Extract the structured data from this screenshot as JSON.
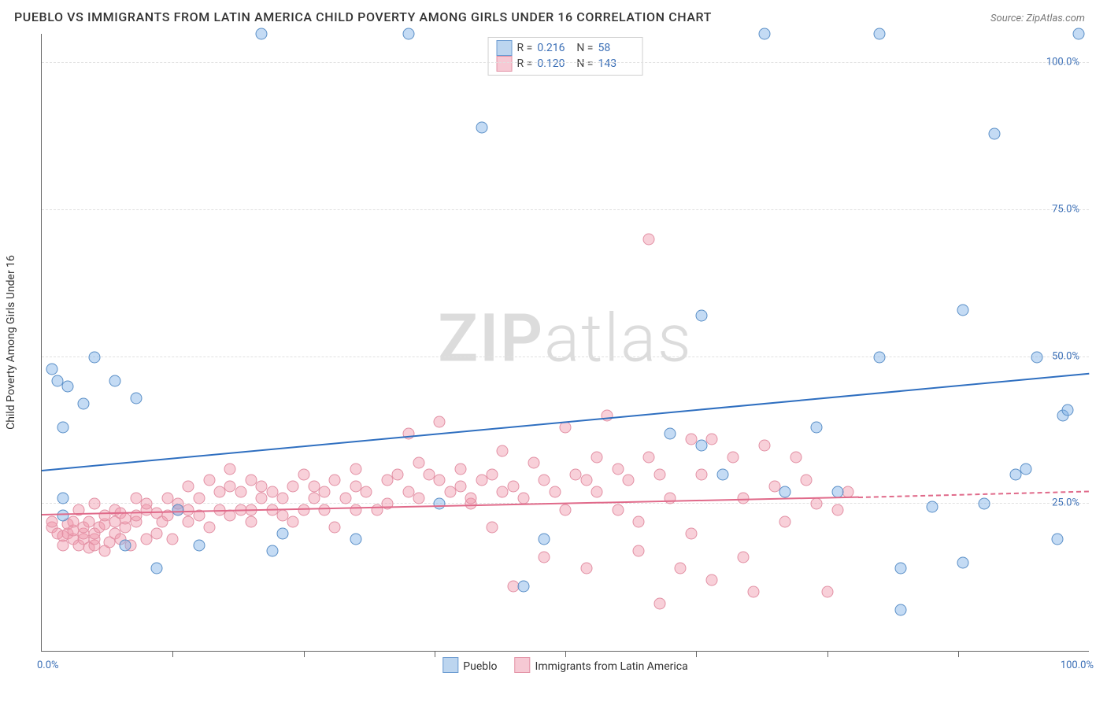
{
  "title": "PUEBLO VS IMMIGRANTS FROM LATIN AMERICA CHILD POVERTY AMONG GIRLS UNDER 16 CORRELATION CHART",
  "source_label": "Source: ZipAtlas.com",
  "ylabel": "Child Poverty Among Girls Under 16",
  "watermark_a": "ZIP",
  "watermark_b": "atlas",
  "xlim": [
    0,
    100
  ],
  "ylim": [
    0,
    105
  ],
  "yticks": [
    {
      "v": 25,
      "label": "25.0%"
    },
    {
      "v": 50,
      "label": "50.0%"
    },
    {
      "v": 75,
      "label": "75.0%"
    },
    {
      "v": 100,
      "label": "100.0%"
    }
  ],
  "xticks_minor": [
    12.5,
    25,
    37.5,
    50,
    62.5,
    75,
    87.5
  ],
  "x_axis_labels": {
    "min": "0.0%",
    "max": "100.0%"
  },
  "series": {
    "pueblo": {
      "label": "Pueblo",
      "R": "0.216",
      "N": "58",
      "marker_fill": "rgba(125,175,230,0.45)",
      "marker_stroke": "#5a8fc7",
      "swatch_fill": "#bcd5ef",
      "swatch_stroke": "#6b9bd1",
      "trend_color": "#2f6fc0",
      "trend": {
        "x1": 0,
        "y1": 30.5,
        "x2": 100,
        "y2": 47
      },
      "points": [
        [
          1,
          48
        ],
        [
          1.5,
          46
        ],
        [
          2,
          23
        ],
        [
          2,
          26
        ],
        [
          2,
          38
        ],
        [
          2.5,
          45
        ],
        [
          4,
          42
        ],
        [
          5,
          50
        ],
        [
          7,
          46
        ],
        [
          8,
          18
        ],
        [
          9,
          43
        ],
        [
          11,
          14
        ],
        [
          13,
          24
        ],
        [
          15,
          18
        ],
        [
          21,
          105
        ],
        [
          22,
          17
        ],
        [
          23,
          20
        ],
        [
          30,
          19
        ],
        [
          35,
          105
        ],
        [
          38,
          25
        ],
        [
          42,
          89
        ],
        [
          46,
          11
        ],
        [
          48,
          19
        ],
        [
          60,
          37
        ],
        [
          63,
          35
        ],
        [
          63,
          57
        ],
        [
          65,
          30
        ],
        [
          69,
          105
        ],
        [
          71,
          27
        ],
        [
          74,
          38
        ],
        [
          76,
          27
        ],
        [
          80,
          50
        ],
        [
          80,
          105
        ],
        [
          82,
          7
        ],
        [
          82,
          14
        ],
        [
          85,
          24.5
        ],
        [
          88,
          15
        ],
        [
          88,
          58
        ],
        [
          90,
          25
        ],
        [
          91,
          88
        ],
        [
          93,
          30
        ],
        [
          94,
          31
        ],
        [
          95,
          50
        ],
        [
          97,
          19
        ],
        [
          97.5,
          40
        ],
        [
          98,
          41
        ],
        [
          99,
          105
        ]
      ]
    },
    "immigrants": {
      "label": "Immigrants from Latin America",
      "R": "0.120",
      "N": "143",
      "marker_fill": "rgba(240,150,170,0.45)",
      "marker_stroke": "#e290a4",
      "swatch_fill": "#f6c9d4",
      "swatch_stroke": "#e493a7",
      "trend_color": "#e06a8a",
      "trend": {
        "x1": 0,
        "y1": 23,
        "x2": 78,
        "y2": 26
      },
      "trend_dash": {
        "x1": 78,
        "y1": 26,
        "x2": 100,
        "y2": 27
      },
      "points": [
        [
          1,
          21
        ],
        [
          1,
          22
        ],
        [
          1.5,
          20
        ],
        [
          2,
          18
        ],
        [
          2,
          19.5
        ],
        [
          2.5,
          20
        ],
        [
          2.5,
          21.5
        ],
        [
          3,
          19
        ],
        [
          3,
          20.5
        ],
        [
          3,
          22
        ],
        [
          3.5,
          18
        ],
        [
          3.5,
          24
        ],
        [
          4,
          19
        ],
        [
          4,
          20
        ],
        [
          4,
          21
        ],
        [
          4.5,
          17.5
        ],
        [
          4.5,
          22
        ],
        [
          5,
          18
        ],
        [
          5,
          19
        ],
        [
          5,
          20
        ],
        [
          5,
          25
        ],
        [
          5.5,
          21
        ],
        [
          6,
          17
        ],
        [
          6,
          21.5
        ],
        [
          6,
          23
        ],
        [
          6.5,
          18.5
        ],
        [
          7,
          20
        ],
        [
          7,
          22
        ],
        [
          7,
          24
        ],
        [
          7.5,
          19
        ],
        [
          7.5,
          23.5
        ],
        [
          8,
          21
        ],
        [
          8,
          22.5
        ],
        [
          8.5,
          18
        ],
        [
          9,
          22
        ],
        [
          9,
          23
        ],
        [
          9,
          26
        ],
        [
          10,
          19
        ],
        [
          10,
          24
        ],
        [
          10,
          25
        ],
        [
          11,
          20
        ],
        [
          11,
          23.5
        ],
        [
          11.5,
          22
        ],
        [
          12,
          23
        ],
        [
          12,
          26
        ],
        [
          12.5,
          19
        ],
        [
          13,
          24
        ],
        [
          13,
          25
        ],
        [
          14,
          22
        ],
        [
          14,
          24
        ],
        [
          14,
          28
        ],
        [
          15,
          23
        ],
        [
          15,
          26
        ],
        [
          16,
          21
        ],
        [
          16,
          29
        ],
        [
          17,
          24
        ],
        [
          17,
          27
        ],
        [
          18,
          23
        ],
        [
          18,
          28
        ],
        [
          18,
          31
        ],
        [
          19,
          24
        ],
        [
          19,
          27
        ],
        [
          20,
          22
        ],
        [
          20,
          24
        ],
        [
          20,
          29
        ],
        [
          21,
          26
        ],
        [
          21,
          28
        ],
        [
          22,
          24
        ],
        [
          22,
          27
        ],
        [
          23,
          23
        ],
        [
          23,
          26
        ],
        [
          24,
          22
        ],
        [
          24,
          28
        ],
        [
          25,
          24
        ],
        [
          25,
          30
        ],
        [
          26,
          26
        ],
        [
          26,
          28
        ],
        [
          27,
          24
        ],
        [
          27,
          27
        ],
        [
          28,
          21
        ],
        [
          28,
          29
        ],
        [
          29,
          26
        ],
        [
          30,
          24
        ],
        [
          30,
          28
        ],
        [
          30,
          31
        ],
        [
          31,
          27
        ],
        [
          32,
          24
        ],
        [
          33,
          25
        ],
        [
          33,
          29
        ],
        [
          34,
          30
        ],
        [
          35,
          27
        ],
        [
          35,
          37
        ],
        [
          36,
          26
        ],
        [
          36,
          32
        ],
        [
          37,
          30
        ],
        [
          38,
          29
        ],
        [
          38,
          39
        ],
        [
          39,
          27
        ],
        [
          40,
          28
        ],
        [
          40,
          31
        ],
        [
          41,
          25
        ],
        [
          41,
          26
        ],
        [
          42,
          29
        ],
        [
          43,
          30
        ],
        [
          43,
          21
        ],
        [
          44,
          27
        ],
        [
          44,
          34
        ],
        [
          45,
          28
        ],
        [
          45,
          11
        ],
        [
          46,
          26
        ],
        [
          47,
          32
        ],
        [
          48,
          29
        ],
        [
          48,
          16
        ],
        [
          49,
          27
        ],
        [
          50,
          24
        ],
        [
          50,
          38
        ],
        [
          51,
          30
        ],
        [
          52,
          29
        ],
        [
          52,
          14
        ],
        [
          53,
          27
        ],
        [
          53,
          33
        ],
        [
          54,
          40
        ],
        [
          55,
          24
        ],
        [
          55,
          31
        ],
        [
          56,
          29
        ],
        [
          57,
          22
        ],
        [
          57,
          17
        ],
        [
          58,
          33
        ],
        [
          58,
          70
        ],
        [
          59,
          30
        ],
        [
          59,
          8
        ],
        [
          60,
          26
        ],
        [
          61,
          14
        ],
        [
          62,
          36
        ],
        [
          62,
          20
        ],
        [
          63,
          30
        ],
        [
          64,
          12
        ],
        [
          64,
          36
        ],
        [
          66,
          33
        ],
        [
          67,
          16
        ],
        [
          67,
          26
        ],
        [
          68,
          10
        ],
        [
          69,
          35
        ],
        [
          70,
          28
        ],
        [
          71,
          22
        ],
        [
          72,
          33
        ],
        [
          73,
          29
        ],
        [
          74,
          25
        ],
        [
          75,
          10
        ],
        [
          76,
          24
        ],
        [
          77,
          27
        ]
      ]
    }
  }
}
